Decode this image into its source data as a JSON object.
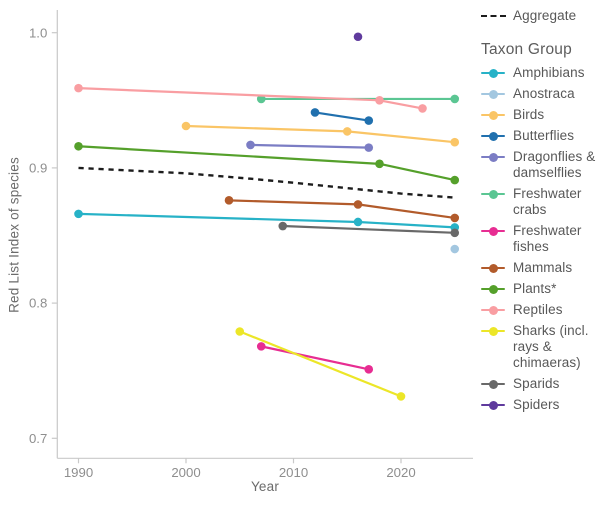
{
  "chart_data": {
    "type": "line",
    "title": "",
    "xlabel": "Year",
    "ylabel": "Red List Index of species",
    "xlim": [
      1988,
      2026.7
    ],
    "ylim": [
      0.685,
      1.017
    ],
    "x_ticks": [
      1990,
      2000,
      2010,
      2020
    ],
    "y_ticks": [
      1.0,
      0.9,
      0.8,
      0.7
    ],
    "y_tick_labels": [
      "1.0",
      "0.9",
      "0.8",
      "0.7"
    ],
    "grid": false,
    "legend_position": "right",
    "legend_title": "Taxon Group",
    "aggregate": {
      "name": "Aggregate",
      "style": "dashed",
      "color": "#1c1c1c",
      "points": [
        [
          1990,
          0.9
        ],
        [
          2000,
          0.896
        ],
        [
          2006,
          0.892
        ],
        [
          2010,
          0.889
        ],
        [
          2015,
          0.885
        ],
        [
          2020,
          0.881
        ],
        [
          2025,
          0.878
        ]
      ]
    },
    "series": [
      {
        "name": "Amphibians",
        "color": "#27b2c7",
        "points": [
          [
            1990,
            0.866
          ],
          [
            2016,
            0.86
          ],
          [
            2025,
            0.856
          ]
        ]
      },
      {
        "name": "Anostraca",
        "color": "#a3c7e0",
        "points": [
          [
            2025,
            0.84
          ]
        ]
      },
      {
        "name": "Birds",
        "color": "#fac566",
        "points": [
          [
            2000,
            0.931
          ],
          [
            2015,
            0.927
          ],
          [
            2025,
            0.919
          ]
        ]
      },
      {
        "name": "Butterflies",
        "color": "#2070ae",
        "points": [
          [
            2012,
            0.941
          ],
          [
            2017,
            0.935
          ]
        ]
      },
      {
        "name": "Dragonflies & damselflies",
        "color": "#7b7dc4",
        "points": [
          [
            2006,
            0.917
          ],
          [
            2017,
            0.915
          ]
        ]
      },
      {
        "name": "Freshwater crabs",
        "color": "#5bc693",
        "points": [
          [
            2007,
            0.951
          ],
          [
            2025,
            0.951
          ]
        ]
      },
      {
        "name": "Freshwater fishes",
        "color": "#e72d92",
        "points": [
          [
            2007,
            0.768
          ],
          [
            2017,
            0.751
          ]
        ]
      },
      {
        "name": "Mammals",
        "color": "#b25b2b",
        "points": [
          [
            2004,
            0.876
          ],
          [
            2016,
            0.873
          ],
          [
            2025,
            0.863
          ]
        ]
      },
      {
        "name": "Plants*",
        "color": "#55a02b",
        "points": [
          [
            1990,
            0.916
          ],
          [
            2018,
            0.903
          ],
          [
            2025,
            0.891
          ]
        ]
      },
      {
        "name": "Reptiles",
        "color": "#f99ea2",
        "points": [
          [
            1990,
            0.959
          ],
          [
            2018,
            0.95
          ],
          [
            2022,
            0.944
          ]
        ]
      },
      {
        "name": "Sharks (incl. rays & chimaeras)",
        "color": "#ece628",
        "points": [
          [
            2005,
            0.779
          ],
          [
            2020,
            0.731
          ]
        ]
      },
      {
        "name": "Sparids",
        "color": "#696969",
        "points": [
          [
            2009,
            0.857
          ],
          [
            2025,
            0.852
          ]
        ]
      },
      {
        "name": "Spiders",
        "color": "#5f3a9d",
        "points": [
          [
            2016,
            0.997
          ]
        ]
      }
    ]
  },
  "colors": {
    "background": "#ffffff",
    "axis_line": "#c9c9c9",
    "tick_label": "#8e8e8e",
    "axis_title": "#6b6b6b",
    "legend_text": "#585858"
  }
}
